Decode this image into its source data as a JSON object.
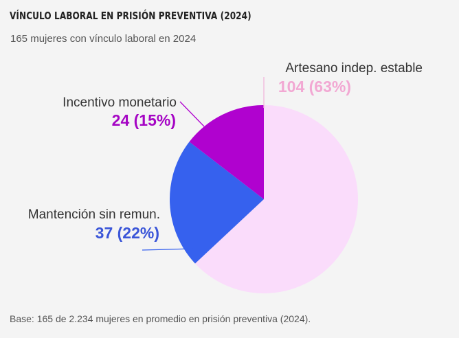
{
  "title": "VÍNCULO LABORAL EN PRISIÓN PREVENTIVA (2024)",
  "subtitle": "165 mujeres con vínculo laboral en 2024",
  "footer": "Base: 165 de 2.234 mujeres en promedio en prisión preventiva (2024).",
  "chart_data": {
    "type": "pie",
    "total": 165,
    "slices": [
      {
        "label": "Artesano indep. estable",
        "value": 104,
        "percent": 63,
        "display": "104 (63%)",
        "color": "#fadcfb",
        "label_color": "#f2a8d3"
      },
      {
        "label": "Mantención sin remun.",
        "value": 37,
        "percent": 22,
        "display": "37 (22%)",
        "color": "#3661ee",
        "label_color": "#3a55d8"
      },
      {
        "label": "Incentivo monetario",
        "value": 24,
        "percent": 15,
        "display": "24 (15%)",
        "color": "#b002cf",
        "label_color": "#a505c4"
      }
    ]
  }
}
